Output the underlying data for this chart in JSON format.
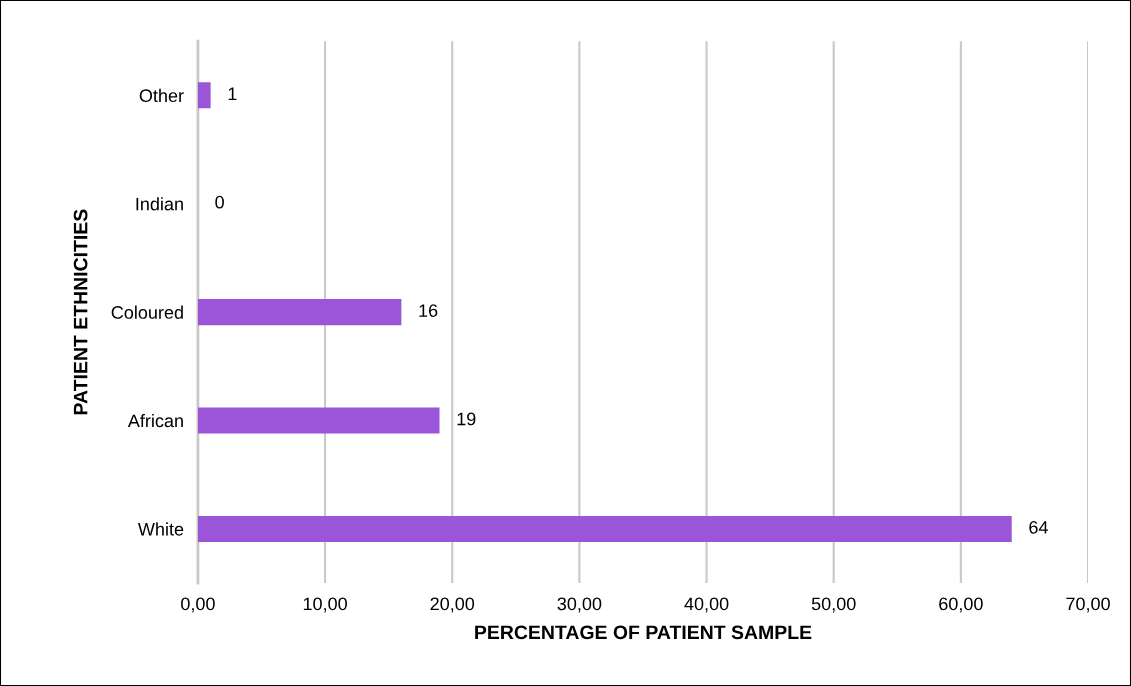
{
  "chart_data": {
    "type": "bar",
    "orientation": "horizontal",
    "categories": [
      "Other",
      "Indian",
      "Coloured",
      "African",
      "White"
    ],
    "values": [
      1,
      0,
      16,
      19,
      64
    ],
    "color": "#9b55d9",
    "data_labels": true,
    "xlabel": "PERCENTAGE OF PATIENT SAMPLE",
    "ylabel": "PATIENT ETHNICITIES",
    "xlim": [
      0,
      70
    ],
    "xticks": [
      {
        "value": 0,
        "label": "0,00"
      },
      {
        "value": 10,
        "label": "10,00"
      },
      {
        "value": 20,
        "label": "20,00"
      },
      {
        "value": 30,
        "label": "30,00"
      },
      {
        "value": 40,
        "label": "40,00"
      },
      {
        "value": 50,
        "label": "50,00"
      },
      {
        "value": 60,
        "label": "60,00"
      },
      {
        "value": 70,
        "label": "70,00"
      }
    ],
    "grid": "x"
  }
}
